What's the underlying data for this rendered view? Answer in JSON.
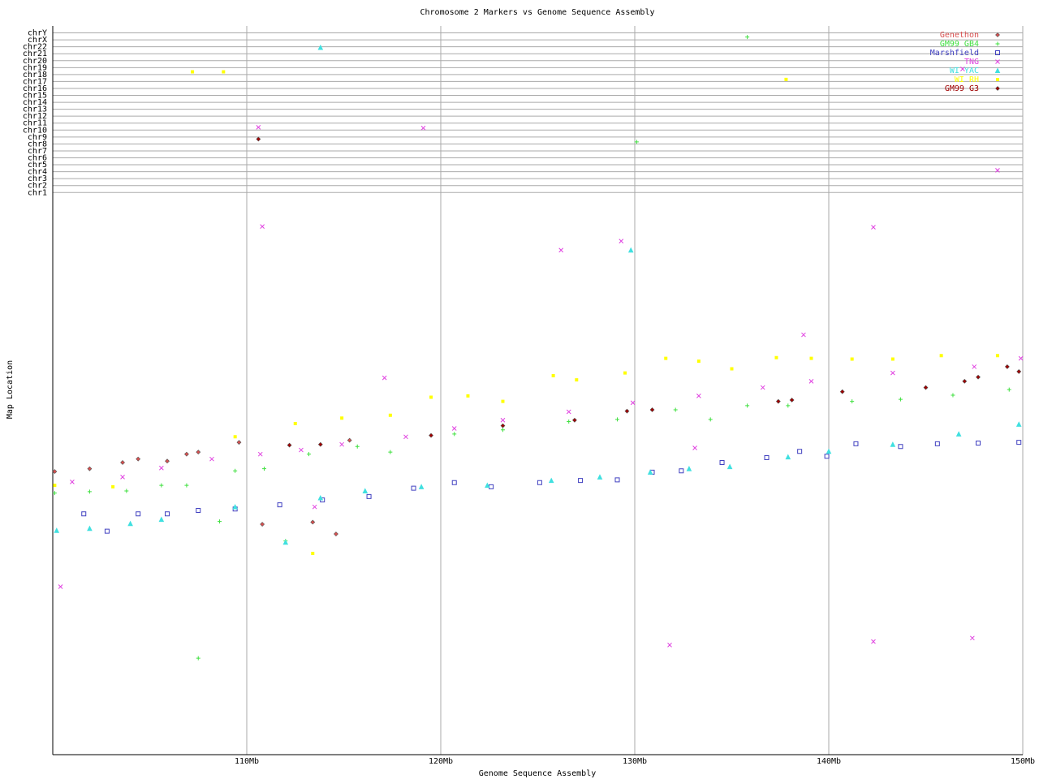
{
  "chart_data": {
    "type": "scatter",
    "title": "Chromosome 2 Markers vs Genome Sequence Assembly",
    "x_label": "Genome Sequence Assembly",
    "y_label": "Map Location",
    "xlim": [
      100,
      150
    ],
    "xticks": [
      {
        "value": 110,
        "label": "110Mb"
      },
      {
        "value": 120,
        "label": "120Mb"
      },
      {
        "value": 130,
        "label": "130Mb"
      },
      {
        "value": 140,
        "label": "140Mb"
      },
      {
        "value": 150,
        "label": "150Mb"
      }
    ],
    "ylim": [
      0,
      1050
    ],
    "yticks": [
      {
        "value": 810,
        "label": "chr1"
      },
      {
        "value": 820,
        "label": "chr2"
      },
      {
        "value": 830,
        "label": "chr3"
      },
      {
        "value": 840,
        "label": "chr4"
      },
      {
        "value": 850,
        "label": "chr5"
      },
      {
        "value": 860,
        "label": "chr6"
      },
      {
        "value": 870,
        "label": "chr7"
      },
      {
        "value": 880,
        "label": "chr8"
      },
      {
        "value": 890,
        "label": "chr9"
      },
      {
        "value": 900,
        "label": "chr10"
      },
      {
        "value": 910,
        "label": "chr11"
      },
      {
        "value": 920,
        "label": "chr12"
      },
      {
        "value": 930,
        "label": "chr13"
      },
      {
        "value": 940,
        "label": "chr14"
      },
      {
        "value": 950,
        "label": "chr15"
      },
      {
        "value": 960,
        "label": "chr16"
      },
      {
        "value": 970,
        "label": "chr17"
      },
      {
        "value": 980,
        "label": "chr18"
      },
      {
        "value": 990,
        "label": "chr19"
      },
      {
        "value": 1000,
        "label": "chr20"
      },
      {
        "value": 1010,
        "label": "chr21"
      },
      {
        "value": 1020,
        "label": "chr22"
      },
      {
        "value": 1030,
        "label": "chrX"
      },
      {
        "value": 1040,
        "label": "chrY"
      }
    ],
    "grid": true,
    "legend": "top-right",
    "series": [
      {
        "name": "Genethon",
        "color": "#d85050",
        "marker": "diamond",
        "x": [
          100.1,
          101.9,
          103.6,
          104.4,
          105.9,
          106.9,
          107.5,
          109.6,
          110.8,
          113.4,
          114.6,
          115.3
        ],
        "values": [
          408,
          412,
          421,
          426,
          423,
          433,
          436,
          450,
          332,
          335,
          318,
          453
        ]
      },
      {
        "name": "GM99 GB4",
        "color": "#40e040",
        "marker": "plus",
        "x": [
          100.1,
          101.9,
          103.8,
          105.6,
          106.9,
          107.5,
          108.6,
          109.4,
          110.9,
          112.0,
          113.2,
          115.7,
          117.4,
          120.7,
          123.2,
          126.6,
          129.1,
          130.1,
          132.1,
          133.9,
          135.8,
          135.8,
          137.9,
          141.2,
          143.7,
          146.4,
          149.3
        ],
        "values": [
          377,
          379,
          380,
          388,
          388,
          139,
          336,
          409,
          412,
          308,
          433,
          444,
          436,
          462,
          468,
          480,
          483,
          883,
          497,
          483,
          503,
          1034,
          503,
          509,
          512,
          518,
          526
        ]
      },
      {
        "name": "Marshfield",
        "color": "#4040c0",
        "marker": "square",
        "x": [
          101.6,
          102.8,
          104.4,
          105.9,
          107.5,
          109.4,
          111.7,
          113.9,
          116.3,
          118.6,
          120.7,
          122.6,
          125.1,
          127.2,
          129.1,
          130.9,
          132.4,
          134.5,
          136.8,
          138.5,
          139.9,
          141.4,
          143.7,
          145.6,
          147.7,
          149.8
        ],
        "values": [
          347,
          322,
          347,
          347,
          352,
          354,
          360,
          367,
          372,
          384,
          392,
          386,
          392,
          395,
          396,
          407,
          409,
          421,
          428,
          437,
          430,
          448,
          444,
          448,
          449,
          450
        ]
      },
      {
        "name": "TNG",
        "color": "#e040e0",
        "marker": "cross",
        "x": [
          100.4,
          101.0,
          103.6,
          105.6,
          108.2,
          110.7,
          110.8,
          110.6,
          112.8,
          113.5,
          114.9,
          117.1,
          118.2,
          119.1,
          120.7,
          123.2,
          126.2,
          126.6,
          129.3,
          129.9,
          131.8,
          133.1,
          133.3,
          136.6,
          138.7,
          139.1,
          142.3,
          142.3,
          143.3,
          146.9,
          147.4,
          147.5,
          148.7,
          149.9
        ],
        "values": [
          242,
          393,
          400,
          413,
          426,
          433,
          761,
          904,
          439,
          357,
          447,
          543,
          458,
          903,
          470,
          482,
          727,
          494,
          740,
          507,
          158,
          442,
          517,
          529,
          605,
          538,
          760,
          163,
          550,
          988,
          168,
          559,
          842,
          571
        ]
      },
      {
        "name": "WI YAC",
        "color": "#40e0e0",
        "marker": "triangle",
        "x": [
          100.2,
          101.9,
          104.0,
          105.6,
          109.4,
          112.0,
          113.8,
          113.8,
          116.1,
          119.0,
          122.4,
          125.7,
          128.2,
          129.8,
          130.8,
          132.8,
          134.9,
          137.9,
          140.0,
          143.3,
          146.7,
          149.8
        ],
        "values": [
          323,
          326,
          333,
          339,
          357,
          306,
          370,
          1019,
          380,
          386,
          388,
          395,
          400,
          727,
          407,
          412,
          415,
          429,
          437,
          447,
          462,
          476
        ]
      },
      {
        "name": "WI RH",
        "color": "#ffff00",
        "marker": "dot",
        "x": [
          100.1,
          103.1,
          107.2,
          108.8,
          109.4,
          112.5,
          113.4,
          114.9,
          117.4,
          119.5,
          121.4,
          123.2,
          125.8,
          127.0,
          129.5,
          131.6,
          133.3,
          135.0,
          137.3,
          137.8,
          139.1,
          141.2,
          143.3,
          145.8,
          148.7
        ],
        "values": [
          388,
          386,
          984,
          984,
          458,
          477,
          290,
          485,
          489,
          515,
          517,
          509,
          546,
          540,
          550,
          571,
          567,
          556,
          572,
          973,
          571,
          570,
          570,
          575,
          575
        ]
      },
      {
        "name": "GM99 G3",
        "color": "#a00000",
        "marker": "diamond",
        "x": [
          110.6,
          112.2,
          113.8,
          119.5,
          123.2,
          126.9,
          129.6,
          130.9,
          137.4,
          138.1,
          140.7,
          145.0,
          147.0,
          147.7,
          149.2,
          149.8
        ],
        "values": [
          887,
          446,
          447,
          460,
          474,
          482,
          495,
          497,
          509,
          511,
          523,
          529,
          538,
          544,
          559,
          552
        ]
      }
    ]
  }
}
